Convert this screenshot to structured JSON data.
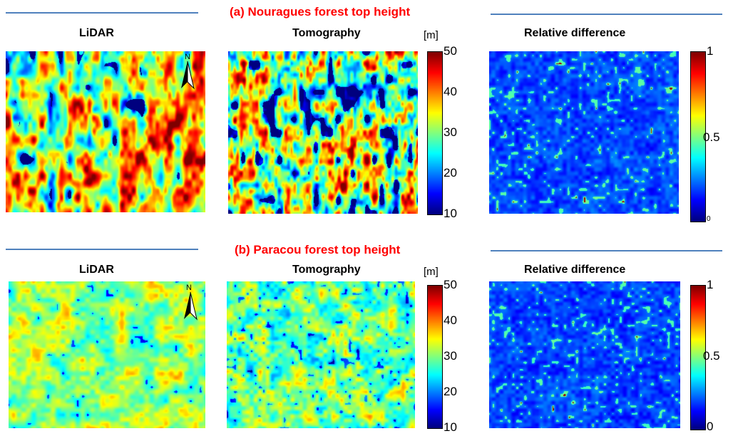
{
  "sections": [
    {
      "title": "(a) Nouragues forest top height",
      "panels": {
        "lidar": "LiDAR",
        "tomo": "Tomography",
        "rel": "Relative difference"
      },
      "unit": "[m]",
      "height_ticks": [
        "50",
        "40",
        "30",
        "20",
        "10"
      ],
      "rel_ticks": [
        "1",
        "0.5",
        "0"
      ],
      "north": "N"
    },
    {
      "title": "(b) Paracou forest top height",
      "panels": {
        "lidar": "LiDAR",
        "tomo": "Tomography",
        "rel": "Relative difference"
      },
      "unit": "[m]",
      "height_ticks": [
        "50",
        "40",
        "30",
        "20",
        "10"
      ],
      "rel_ticks": [
        "1",
        "0.5",
        "0"
      ],
      "north": "N"
    }
  ],
  "colormap": "jet",
  "height_range_m": [
    10,
    50
  ],
  "relative_difference_range": [
    0,
    1
  ]
}
